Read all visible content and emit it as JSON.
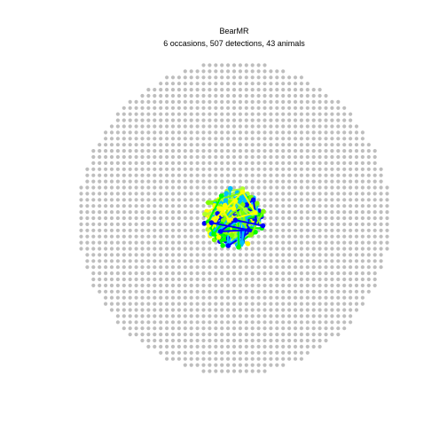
{
  "chart_data": {
    "type": "scatter",
    "title": "BearMR",
    "subtitle": "6 occasions, 507 detections, 43 animals",
    "xlabel": "",
    "ylabel": "",
    "grid": false,
    "legend": "none",
    "series": [
      {
        "role": "detector-grid",
        "color": "#bebebe",
        "layout": "square grid clipped to circle",
        "rows": 51,
        "cols": 51,
        "spacing_units": 1,
        "radius_units": 25.5
      },
      {
        "role": "detections",
        "colors": [
          "#0000ff",
          "#00bfff",
          "#7fff00",
          "#adff2f",
          "#00ff00",
          "#ffff00"
        ],
        "center": [
          0,
          0
        ],
        "spread_units": 5.0
      }
    ],
    "occasions": 6,
    "detections": 507,
    "animals": 43
  }
}
